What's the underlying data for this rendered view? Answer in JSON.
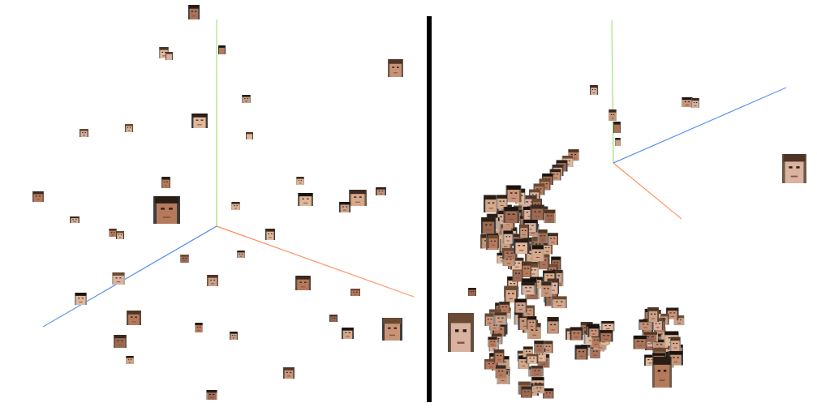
{
  "left_plot": {
    "axis_colors": {
      "x": "#ff8c5a",
      "y": "#9be06c",
      "z": "#4a88e8"
    },
    "face_count": 45
  },
  "right_plot": {
    "axis_colors": {
      "x": "#ff8c5a",
      "y": "#9be06c",
      "z": "#4a88e8"
    },
    "face_count": 190
  },
  "colors": {
    "divider": "#000000",
    "skin": [
      "#c79478",
      "#d6a98a",
      "#b57a5c",
      "#e0b89c",
      "#a8735a",
      "#caa088",
      "#9c6a52",
      "#d9b2a0"
    ],
    "hair": [
      "#2a1d16",
      "#3b2a1f",
      "#4e3526",
      "#1a1410",
      "#6a4a33"
    ],
    "background_tile": [
      "#5c4a3c",
      "#8a8a8a",
      "#3d3d3d",
      "#6e5a4a",
      "#b7a694"
    ]
  }
}
